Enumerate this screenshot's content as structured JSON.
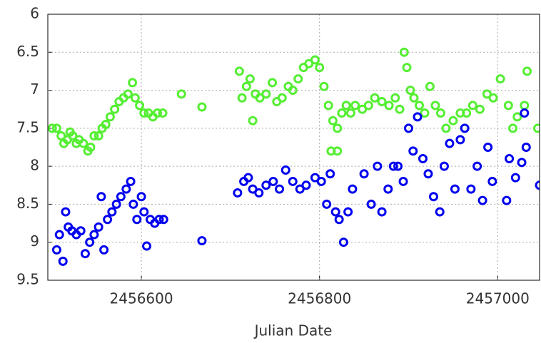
{
  "chart_data": {
    "type": "scatter",
    "xlabel": "Julian Date",
    "xlim": [
      2456495,
      2457047
    ],
    "ylim": [
      9.5,
      6
    ],
    "xticks": [
      2456600,
      2456800,
      2457000
    ],
    "yticks": [
      6,
      6.5,
      7,
      7.5,
      8,
      8.5,
      9,
      9.5
    ],
    "grid": true,
    "series": [
      {
        "color": "#55ee33",
        "x": [
          2456500,
          2456505,
          2456510,
          2456513,
          2456517,
          2456520,
          2456523,
          2456527,
          2456530,
          2456535,
          2456540,
          2456543,
          2456547,
          2456552,
          2456556,
          2456560,
          2456565,
          2456570,
          2456575,
          2456580,
          2456585,
          2456590,
          2456593,
          2456598,
          2456603,
          2456608,
          2456613,
          2456618,
          2456624,
          2456645,
          2456668,
          2456710,
          2456713,
          2456718,
          2456722,
          2456725,
          2456728,
          2456733,
          2456740,
          2456747,
          2456752,
          2456758,
          2456765,
          2456770,
          2456776,
          2456782,
          2456788,
          2456795,
          2456800,
          2456805,
          2456810,
          2456813,
          2456815,
          2456820,
          2456820,
          2456825,
          2456830,
          2456835,
          2456840,
          2456848,
          2456855,
          2456862,
          2456870,
          2456878,
          2456885,
          2456890,
          2456895,
          2456898,
          2456902,
          2456906,
          2456912,
          2456918,
          2456924,
          2456930,
          2456936,
          2456942,
          2456950,
          2456958,
          2456965,
          2456972,
          2456980,
          2456988,
          2456995,
          2457003,
          2457012,
          2457017,
          2457022,
          2457030,
          2457033,
          2457045
        ],
        "values": [
          7.5,
          7.5,
          7.6,
          7.7,
          7.65,
          7.55,
          7.6,
          7.7,
          7.65,
          7.7,
          7.8,
          7.75,
          7.6,
          7.6,
          7.5,
          7.45,
          7.35,
          7.25,
          7.15,
          7.1,
          7.05,
          6.9,
          7.1,
          7.2,
          7.3,
          7.3,
          7.35,
          7.3,
          7.3,
          7.05,
          7.22,
          6.75,
          7.1,
          6.95,
          6.85,
          7.4,
          7.05,
          7.1,
          7.05,
          6.9,
          7.15,
          7.1,
          6.95,
          7.0,
          6.85,
          6.7,
          6.65,
          6.6,
          6.7,
          6.95,
          7.2,
          7.8,
          7.4,
          7.5,
          7.8,
          7.3,
          7.2,
          7.3,
          7.2,
          7.25,
          7.2,
          7.1,
          7.15,
          7.2,
          7.1,
          7.25,
          6.5,
          6.7,
          7.0,
          7.1,
          7.2,
          7.3,
          6.95,
          7.2,
          7.3,
          7.5,
          7.4,
          7.3,
          7.3,
          7.2,
          7.25,
          7.05,
          7.1,
          6.85,
          7.2,
          7.5,
          7.35,
          7.2,
          6.75,
          7.5
        ]
      },
      {
        "color": "#0000ee",
        "x": [
          2456505,
          2456508,
          2456512,
          2456515,
          2456518,
          2456522,
          2456527,
          2456532,
          2456537,
          2456542,
          2456547,
          2456552,
          2456555,
          2456558,
          2456562,
          2456567,
          2456572,
          2456577,
          2456583,
          2456588,
          2456591,
          2456595,
          2456600,
          2456603,
          2456606,
          2456610,
          2456615,
          2456620,
          2456625,
          2456668,
          2456708,
          2456715,
          2456720,
          2456725,
          2456732,
          2456740,
          2456748,
          2456755,
          2456762,
          2456770,
          2456778,
          2456785,
          2456795,
          2456802,
          2456808,
          2456812,
          2456818,
          2456822,
          2456827,
          2456832,
          2456837,
          2456850,
          2456858,
          2456865,
          2456870,
          2456877,
          2456883,
          2456888,
          2456894,
          2456900,
          2456905,
          2456910,
          2456916,
          2456922,
          2456928,
          2456935,
          2456940,
          2456946,
          2456952,
          2456958,
          2456963,
          2456970,
          2456977,
          2456983,
          2456989,
          2456994,
          2457010,
          2457013,
          2457020,
          2457027,
          2457030,
          2457032,
          2457047
        ],
        "values": [
          9.1,
          8.9,
          9.25,
          8.6,
          8.8,
          8.85,
          8.9,
          8.85,
          9.15,
          9.0,
          8.9,
          8.8,
          8.4,
          9.1,
          8.7,
          8.6,
          8.5,
          8.4,
          8.3,
          8.2,
          8.5,
          8.7,
          8.4,
          8.6,
          9.05,
          8.7,
          8.75,
          8.7,
          8.7,
          8.98,
          8.35,
          8.2,
          8.15,
          8.3,
          8.35,
          8.25,
          8.2,
          8.3,
          8.05,
          8.2,
          8.3,
          8.25,
          8.15,
          8.2,
          8.5,
          8.1,
          8.6,
          8.7,
          9.0,
          8.6,
          8.3,
          8.1,
          8.5,
          8.0,
          8.6,
          8.3,
          8.0,
          8.0,
          8.2,
          7.5,
          7.8,
          7.35,
          7.9,
          8.1,
          8.4,
          8.6,
          8.0,
          7.7,
          8.3,
          7.65,
          7.5,
          8.3,
          8.0,
          8.45,
          7.75,
          8.2,
          8.45,
          7.9,
          8.15,
          7.95,
          7.3,
          7.75,
          8.25
        ]
      }
    ]
  }
}
